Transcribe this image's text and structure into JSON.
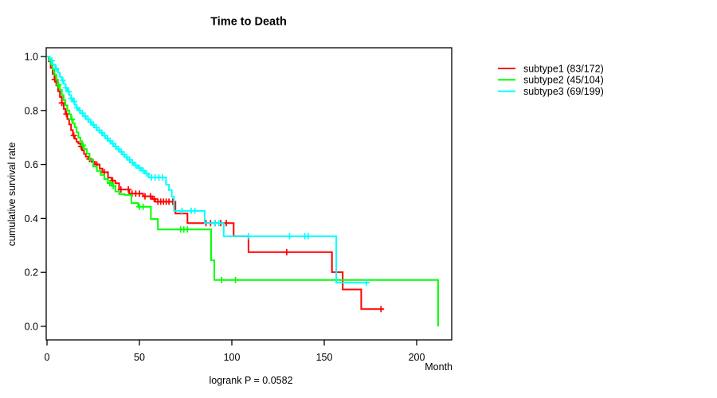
{
  "title": "Time to Death",
  "x_axis_label": "Month",
  "y_axis_label": "cumulative survival rate",
  "footnote": "logrank P = 0.0582",
  "chart_data": {
    "type": "line",
    "subtype": "kaplan-meier-step",
    "title": "Time to Death",
    "xlabel": "Month",
    "ylabel": "cumulative survival rate",
    "xlim": [
      0,
      219
    ],
    "ylim": [
      0,
      1.0
    ],
    "x_ticks": [
      0,
      50,
      100,
      150,
      200
    ],
    "y_ticks": [
      0.0,
      0.2,
      0.4,
      0.6,
      0.8,
      1.0
    ],
    "grid": false,
    "legend_position": "right-outside",
    "annotation": "logrank P = 0.0582",
    "series": [
      {
        "name": "subtype1 (83/172)",
        "color": "#ff0000",
        "end_month": 182.2,
        "steps": [
          [
            0,
            1.0
          ],
          [
            1,
            0.982
          ],
          [
            2,
            0.958
          ],
          [
            3,
            0.936
          ],
          [
            4,
            0.915
          ],
          [
            5,
            0.893
          ],
          [
            6,
            0.871
          ],
          [
            7,
            0.85
          ],
          [
            8,
            0.828
          ],
          [
            9,
            0.806
          ],
          [
            10,
            0.787
          ],
          [
            11,
            0.768
          ],
          [
            12,
            0.748
          ],
          [
            13,
            0.727
          ],
          [
            14,
            0.707
          ],
          [
            15,
            0.695
          ],
          [
            16,
            0.684
          ],
          [
            17,
            0.678
          ],
          [
            18,
            0.666
          ],
          [
            19,
            0.652
          ],
          [
            20,
            0.639
          ],
          [
            21,
            0.629
          ],
          [
            22.5,
            0.62
          ],
          [
            24,
            0.61
          ],
          [
            26,
            0.6
          ],
          [
            28.5,
            0.585
          ],
          [
            30,
            0.571
          ],
          [
            33,
            0.551
          ],
          [
            35,
            0.54
          ],
          [
            37,
            0.53
          ],
          [
            39,
            0.507
          ],
          [
            44.5,
            0.492
          ],
          [
            52,
            0.482
          ],
          [
            57,
            0.472
          ],
          [
            58.5,
            0.462
          ],
          [
            69.5,
            0.418
          ],
          [
            76,
            0.383
          ],
          [
            101,
            0.334
          ],
          [
            109,
            0.275
          ],
          [
            154.2,
            0.201
          ],
          [
            160,
            0.137
          ],
          [
            170,
            0.064
          ]
        ],
        "censor_months": [
          4.2,
          8,
          10.5,
          14.5,
          18.5,
          23,
          27,
          31,
          35.5,
          40,
          44,
          46,
          48,
          50,
          53,
          56,
          58,
          60,
          61.5,
          63,
          64.5,
          66,
          68,
          86,
          88.5,
          91,
          94,
          97,
          129.7,
          180.7
        ]
      },
      {
        "name": "subtype2 (45/104)",
        "color": "#00ff00",
        "end_month": 211.6,
        "steps": [
          [
            0,
            1.0
          ],
          [
            1,
            0.99
          ],
          [
            2,
            0.971
          ],
          [
            3,
            0.952
          ],
          [
            4,
            0.933
          ],
          [
            5,
            0.914
          ],
          [
            6,
            0.895
          ],
          [
            7,
            0.876
          ],
          [
            8,
            0.857
          ],
          [
            9,
            0.838
          ],
          [
            10,
            0.819
          ],
          [
            11,
            0.8
          ],
          [
            12,
            0.786
          ],
          [
            13,
            0.767
          ],
          [
            14,
            0.752
          ],
          [
            15,
            0.738
          ],
          [
            16,
            0.719
          ],
          [
            17,
            0.7
          ],
          [
            18,
            0.686
          ],
          [
            19,
            0.671
          ],
          [
            20,
            0.657
          ],
          [
            21.5,
            0.64
          ],
          [
            23,
            0.617
          ],
          [
            25,
            0.592
          ],
          [
            27,
            0.576
          ],
          [
            29,
            0.561
          ],
          [
            31,
            0.546
          ],
          [
            33,
            0.531
          ],
          [
            35,
            0.521
          ],
          [
            37,
            0.5
          ],
          [
            39,
            0.49
          ],
          [
            42,
            0.487
          ],
          [
            45.7,
            0.457
          ],
          [
            49.3,
            0.443
          ],
          [
            56.2,
            0.398
          ],
          [
            60,
            0.359
          ],
          [
            88.8,
            0.245
          ],
          [
            90.5,
            0.172
          ],
          [
            211.6,
            0.0
          ]
        ],
        "censor_months": [
          6.2,
          13.5,
          19.5,
          34,
          35.8,
          50,
          52,
          72.3,
          74,
          76,
          94.5,
          102
        ]
      },
      {
        "name": "subtype3 (69/199)",
        "color": "#00ffff",
        "end_month": 174,
        "steps": [
          [
            0,
            1.0
          ],
          [
            1.5,
            0.985
          ],
          [
            3,
            0.97
          ],
          [
            4.5,
            0.955
          ],
          [
            6,
            0.94
          ],
          [
            7,
            0.925
          ],
          [
            8,
            0.912
          ],
          [
            9,
            0.898
          ],
          [
            10,
            0.884
          ],
          [
            11,
            0.87
          ],
          [
            12,
            0.857
          ],
          [
            13,
            0.845
          ],
          [
            14,
            0.833
          ],
          [
            15,
            0.821
          ],
          [
            16,
            0.81
          ],
          [
            17,
            0.8
          ],
          [
            18,
            0.79
          ],
          [
            19.5,
            0.779
          ],
          [
            21,
            0.768
          ],
          [
            22.5,
            0.757
          ],
          [
            24,
            0.747
          ],
          [
            25.5,
            0.737
          ],
          [
            27,
            0.727
          ],
          [
            28.5,
            0.717
          ],
          [
            30,
            0.707
          ],
          [
            31.5,
            0.697
          ],
          [
            33,
            0.687
          ],
          [
            34.5,
            0.677
          ],
          [
            36,
            0.667
          ],
          [
            37.5,
            0.657
          ],
          [
            39,
            0.647
          ],
          [
            40.5,
            0.637
          ],
          [
            42,
            0.627
          ],
          [
            43.5,
            0.617
          ],
          [
            45,
            0.607
          ],
          [
            47,
            0.597
          ],
          [
            49,
            0.587
          ],
          [
            51,
            0.577
          ],
          [
            53,
            0.566
          ],
          [
            55,
            0.552
          ],
          [
            64.4,
            0.525
          ],
          [
            66,
            0.505
          ],
          [
            67.5,
            0.48
          ],
          [
            68.7,
            0.428
          ],
          [
            85.3,
            0.383
          ],
          [
            95.6,
            0.334
          ],
          [
            156.5,
            0.162
          ]
        ],
        "censor_months": [
          2.6,
          5,
          8.5,
          10.2,
          11.7,
          13.2,
          14.7,
          16.2,
          17.7,
          19.2,
          20.7,
          22.2,
          23.7,
          25.2,
          26.7,
          28.2,
          29.7,
          31.2,
          32.7,
          34.2,
          35.7,
          37.2,
          38.7,
          40.2,
          41.7,
          43.2,
          44.7,
          46.2,
          48,
          50,
          52,
          54,
          56.5,
          58.5,
          60.5,
          62.5,
          73,
          78,
          80,
          91,
          93,
          109,
          131.2,
          139.5,
          141.3,
          172.8
        ]
      }
    ]
  }
}
